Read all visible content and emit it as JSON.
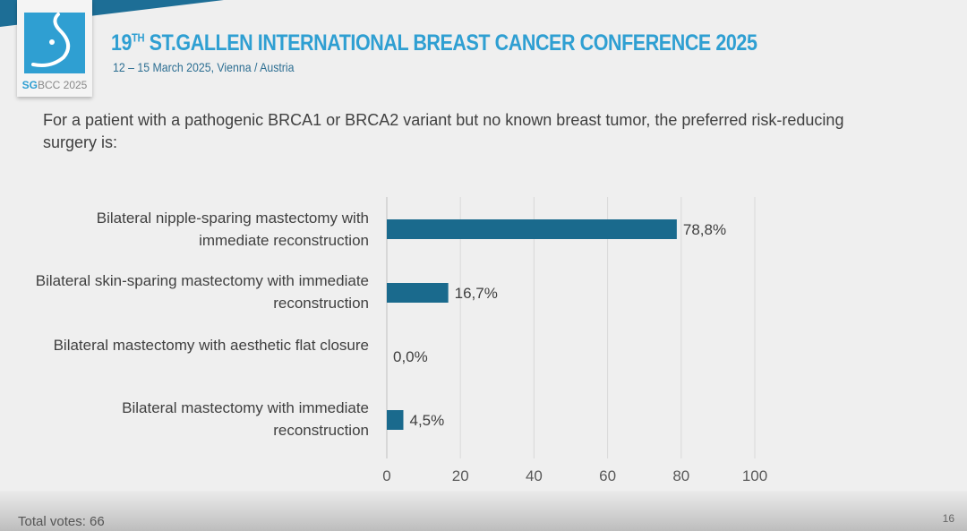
{
  "header": {
    "title_main": "19",
    "title_sup": "TH",
    "title_rest": " ST.GALLEN INTERNATIONAL BREAST CANCER CONFERENCE 2025",
    "subtitle": "12 – 15 March 2025, Vienna / Austria",
    "logo_text_a": "SG",
    "logo_text_b": "BCC 2025",
    "brand_color": "#2f9fd2"
  },
  "question": "For a patient with a pathogenic BRCA1 or BRCA2 variant but no known breast tumor, the preferred risk-reducing surgery is:",
  "chart_data": {
    "type": "bar",
    "orientation": "horizontal",
    "categories": [
      "Bilateral nipple-sparing mastectomy with immediate reconstruction",
      "Bilateral skin-sparing mastectomy with immediate reconstruction",
      "Bilateral mastectomy with aesthetic flat closure",
      "Bilateral mastectomy with immediate reconstruction"
    ],
    "values": [
      78.8,
      16.7,
      0.0,
      4.5
    ],
    "data_labels": [
      "78,8%",
      "16,7%",
      "0,0%",
      "4,5%"
    ],
    "xlim": [
      0,
      100
    ],
    "xticks": [
      "0",
      "20",
      "40",
      "60",
      "80",
      "100"
    ],
    "grid": true,
    "bar_color": "#1a6a8d"
  },
  "footer": {
    "total_votes": "Total votes: 66",
    "page_number": "16"
  }
}
